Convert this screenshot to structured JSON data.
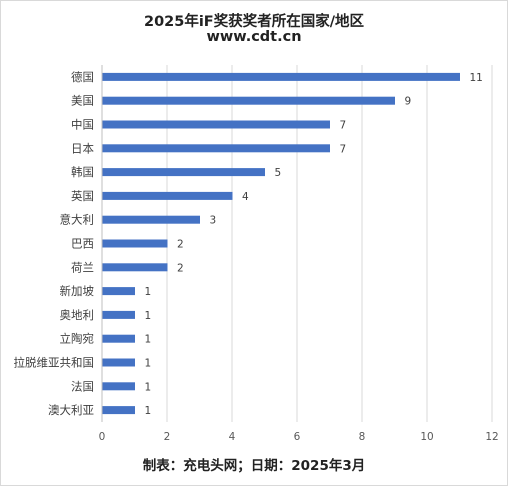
{
  "chart_data": {
    "type": "bar",
    "orientation": "horizontal",
    "title": "2025年iF奖获奖者所在国家/地区",
    "subtitle": "www.cdt.cn",
    "footer": "制表：充电头网；日期：2025年3月",
    "categories": [
      "德国",
      "美国",
      "中国",
      "日本",
      "韩国",
      "英国",
      "意大利",
      "巴西",
      "荷兰",
      "新加坡",
      "奥地利",
      "立陶宛",
      "拉脱维亚共和国",
      "法国",
      "澳大利亚"
    ],
    "values": [
      11,
      9,
      7,
      7,
      5,
      4,
      3,
      2,
      2,
      1,
      1,
      1,
      1,
      1,
      1
    ],
    "xlim": [
      0,
      12
    ],
    "xticks": [
      0,
      2,
      4,
      6,
      8,
      10,
      12
    ],
    "xlabel": "",
    "ylabel": "",
    "grid": true,
    "legend": "none",
    "data_labels": true,
    "colors": {
      "bar": "#4472C4",
      "grid": "#d9d9d9",
      "axis": "#bfbfbf"
    }
  }
}
